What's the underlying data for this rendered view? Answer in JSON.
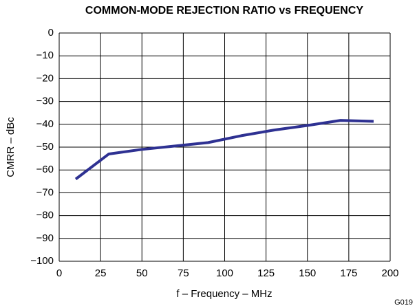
{
  "chart_data": {
    "type": "line",
    "title": "COMMON-MODE REJECTION RATIO vs FREQUENCY",
    "x_label": "f – Frequency – MHz",
    "y_label": "CMRR – dBc",
    "annotation": "G019",
    "x": [
      10,
      30,
      50,
      70,
      90,
      110,
      130,
      150,
      170,
      190
    ],
    "series": [
      {
        "name": "CMRR",
        "color": "#2e3192",
        "values": [
          -64,
          -53,
          -51,
          -49.5,
          -48,
          -45,
          -42.5,
          -40.5,
          -38.3,
          -38.7
        ]
      }
    ],
    "xlim": [
      0,
      200
    ],
    "xticks": [
      0,
      25,
      50,
      75,
      100,
      125,
      150,
      175,
      200
    ],
    "ylim": [
      -100,
      0
    ],
    "yticks": [
      0,
      {
        "value": -10,
        "label": "−10"
      },
      {
        "value": -20,
        "label": "−20"
      },
      {
        "value": -30,
        "label": "−30"
      },
      {
        "value": -40,
        "label": "−40"
      },
      {
        "value": -50,
        "label": "−50"
      },
      {
        "value": -60,
        "label": "−60"
      },
      {
        "value": -70,
        "label": "−70"
      },
      {
        "value": -80,
        "label": "−80"
      },
      {
        "value": -90,
        "label": "−90"
      },
      {
        "value": -100,
        "label": "−100"
      }
    ],
    "grid": true
  }
}
